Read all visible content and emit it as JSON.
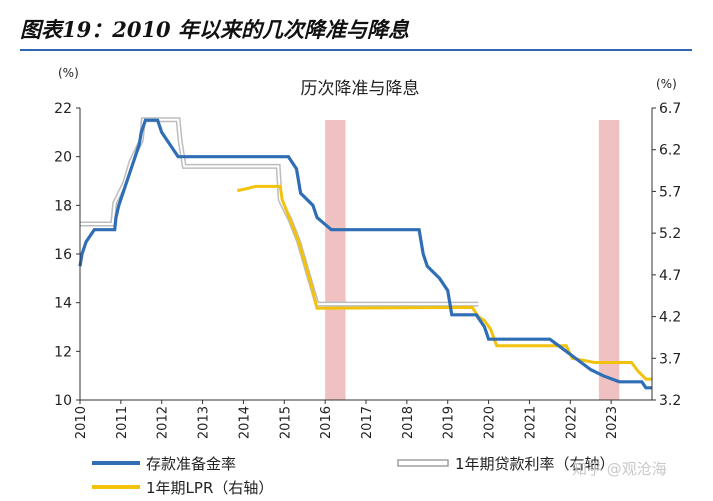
{
  "figure_title": "图表19：2010 年以来的几次降准与降息",
  "watermark": "知乎 @观沧海",
  "colors": {
    "rrr": "#2f6db5",
    "loan": "#bdbdbd",
    "lpr": "#f2c20c",
    "shade": "#efc1c1",
    "title_rule": "#2f66b3"
  },
  "chart_data": {
    "type": "line",
    "title": "历次降准与降息",
    "y_left": {
      "unit": "(%)",
      "lim": [
        10,
        22
      ],
      "ticks": [
        "10",
        "12",
        "14",
        "16",
        "18",
        "20",
        "22"
      ]
    },
    "y_right": {
      "unit": "(%)",
      "lim": [
        3.2,
        6.7
      ],
      "ticks": [
        "3.2",
        "3.7",
        "4.2",
        "4.7",
        "5.2",
        "5.7",
        "6.2",
        "6.7"
      ]
    },
    "x": {
      "lim": [
        2010,
        2024.0
      ],
      "ticks": [
        "2010",
        "2011",
        "2012",
        "2013",
        "2014",
        "2015",
        "2016",
        "2017",
        "2018",
        "2019",
        "2020",
        "2021",
        "2022",
        "2023"
      ]
    },
    "grid": false,
    "shaded_periods": [
      [
        2016.0,
        2016.5
      ],
      [
        2022.7,
        2023.2
      ]
    ],
    "series": [
      {
        "name": "存款准备金率",
        "axis": "left",
        "points": [
          [
            2010.0,
            15.5
          ],
          [
            2010.05,
            16
          ],
          [
            2010.15,
            16.5
          ],
          [
            2010.35,
            17
          ],
          [
            2010.85,
            17
          ],
          [
            2010.88,
            17.5
          ],
          [
            2010.95,
            18
          ],
          [
            2011.05,
            18.5
          ],
          [
            2011.15,
            19
          ],
          [
            2011.25,
            19.5
          ],
          [
            2011.35,
            20
          ],
          [
            2011.45,
            20.5
          ],
          [
            2011.5,
            21
          ],
          [
            2011.6,
            21.5
          ],
          [
            2011.9,
            21.5
          ],
          [
            2012.0,
            21
          ],
          [
            2012.2,
            20.5
          ],
          [
            2012.4,
            20
          ],
          [
            2015.1,
            20
          ],
          [
            2015.3,
            19.5
          ],
          [
            2015.4,
            18.5
          ],
          [
            2015.7,
            18
          ],
          [
            2015.8,
            17.5
          ],
          [
            2016.15,
            17
          ],
          [
            2018.3,
            17
          ],
          [
            2018.4,
            16
          ],
          [
            2018.5,
            15.5
          ],
          [
            2018.8,
            15
          ],
          [
            2019.0,
            14.5
          ],
          [
            2019.1,
            13.5
          ],
          [
            2019.7,
            13.5
          ],
          [
            2019.9,
            13
          ],
          [
            2020.0,
            12.5
          ],
          [
            2021.5,
            12.5
          ],
          [
            2021.9,
            12
          ],
          [
            2022.3,
            11.5
          ],
          [
            2022.5,
            11.25
          ],
          [
            2022.8,
            11
          ],
          [
            2023.2,
            10.75
          ],
          [
            2023.75,
            10.75
          ],
          [
            2023.85,
            10.5
          ],
          [
            2024.0,
            10.5
          ]
        ]
      },
      {
        "name": "1年期贷款利率（右轴）",
        "axis": "right",
        "points": [
          [
            2010.0,
            5.31
          ],
          [
            2010.8,
            5.31
          ],
          [
            2010.85,
            5.56
          ],
          [
            2011.1,
            5.81
          ],
          [
            2011.25,
            6.06
          ],
          [
            2011.5,
            6.31
          ],
          [
            2011.55,
            6.56
          ],
          [
            2012.4,
            6.56
          ],
          [
            2012.45,
            6.31
          ],
          [
            2012.55,
            6.0
          ],
          [
            2014.85,
            6.0
          ],
          [
            2014.9,
            5.6
          ],
          [
            2015.15,
            5.35
          ],
          [
            2015.35,
            5.1
          ],
          [
            2015.5,
            4.85
          ],
          [
            2015.65,
            4.6
          ],
          [
            2015.8,
            4.35
          ],
          [
            2019.75,
            4.35
          ]
        ]
      },
      {
        "name": "1年期LPR（右轴）",
        "axis": "right",
        "points": [
          [
            2013.85,
            5.71
          ],
          [
            2014.05,
            5.73
          ],
          [
            2014.3,
            5.76
          ],
          [
            2014.9,
            5.76
          ],
          [
            2014.95,
            5.6
          ],
          [
            2015.15,
            5.35
          ],
          [
            2015.35,
            5.1
          ],
          [
            2015.5,
            4.85
          ],
          [
            2015.65,
            4.6
          ],
          [
            2015.8,
            4.3
          ],
          [
            2019.6,
            4.31
          ],
          [
            2019.75,
            4.2
          ],
          [
            2019.9,
            4.15
          ],
          [
            2020.05,
            4.05
          ],
          [
            2020.2,
            3.85
          ],
          [
            2021.9,
            3.85
          ],
          [
            2021.95,
            3.8
          ],
          [
            2022.05,
            3.7
          ],
          [
            2022.6,
            3.65
          ],
          [
            2023.5,
            3.65
          ],
          [
            2023.65,
            3.55
          ],
          [
            2023.85,
            3.45
          ],
          [
            2024.0,
            3.45
          ]
        ]
      }
    ],
    "legend": {
      "placement": "bottom",
      "entries": [
        "存款准备金率",
        "1年期贷款利率（右轴）",
        "1年期LPR（右轴）"
      ]
    }
  }
}
